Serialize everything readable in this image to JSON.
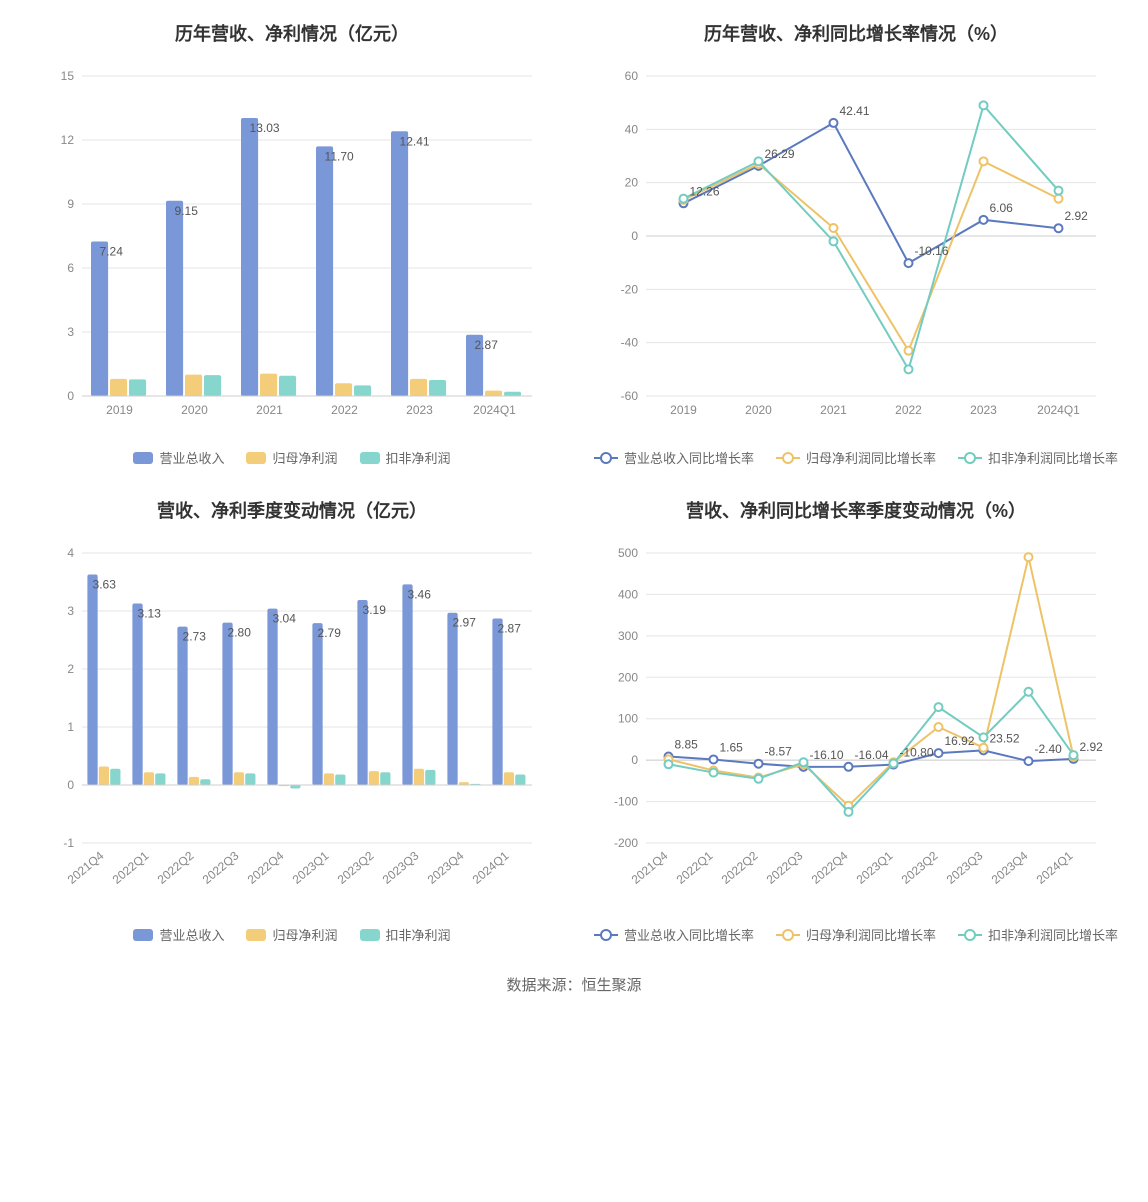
{
  "source_label": "数据来源：恒生聚源",
  "colors": {
    "blue": "#7a97d8",
    "yellow": "#f4cd7a",
    "teal": "#87d6cd",
    "line_blue": "#5b79bf",
    "line_yellow": "#eec368",
    "line_teal": "#73ccc1",
    "grid": "#e5e5e5",
    "axis_text": "#888",
    "value_label": "#555",
    "title": "#333333",
    "bg": "#ffffff"
  },
  "charts": {
    "topLeft": {
      "type": "bar",
      "title": "历年营收、净利情况（亿元）",
      "categories": [
        "2019",
        "2020",
        "2021",
        "2022",
        "2023",
        "2024Q1"
      ],
      "y": {
        "min": 0,
        "max": 15,
        "step": 3
      },
      "series": [
        {
          "name": "营业总收入",
          "colorKey": "blue",
          "values": [
            7.24,
            9.15,
            13.03,
            11.7,
            12.41,
            2.87
          ],
          "showLabels": true
        },
        {
          "name": "归母净利润",
          "colorKey": "yellow",
          "values": [
            0.8,
            1.0,
            1.05,
            0.6,
            0.8,
            0.25
          ],
          "showLabels": false
        },
        {
          "name": "扣非净利润",
          "colorKey": "teal",
          "values": [
            0.78,
            0.98,
            0.95,
            0.5,
            0.75,
            0.2
          ],
          "showLabels": false
        }
      ],
      "legend": [
        "营业总收入",
        "归母净利润",
        "扣非净利润"
      ]
    },
    "topRight": {
      "type": "line",
      "title": "历年营收、净利同比增长率情况（%）",
      "categories": [
        "2019",
        "2020",
        "2021",
        "2022",
        "2023",
        "2024Q1"
      ],
      "y": {
        "min": -60,
        "max": 60,
        "step": 20
      },
      "series": [
        {
          "name": "营业总收入同比增长率",
          "colorKey": "line_blue",
          "values": [
            12.26,
            26.29,
            42.41,
            -10.16,
            6.06,
            2.92
          ],
          "labels": [
            "12.26",
            "26.29",
            "42.41",
            "-10.16",
            "6.06",
            "2.92"
          ]
        },
        {
          "name": "归母净利润同比增长率",
          "colorKey": "line_yellow",
          "values": [
            13.5,
            27.0,
            3.0,
            -43.0,
            28.0,
            14.0
          ],
          "labels": []
        },
        {
          "name": "扣非净利润同比增长率",
          "colorKey": "line_teal",
          "values": [
            14.0,
            28.0,
            -2.0,
            -50.0,
            49.0,
            17.0
          ],
          "labels": []
        }
      ],
      "legend": [
        "营业总收入同比增长率",
        "归母净利润同比增长率",
        "扣非净利润同比增长率"
      ]
    },
    "bottomLeft": {
      "type": "bar",
      "title": "营收、净利季度变动情况（亿元）",
      "categories": [
        "2021Q4",
        "2022Q1",
        "2022Q2",
        "2022Q3",
        "2022Q4",
        "2023Q1",
        "2023Q2",
        "2023Q3",
        "2023Q4",
        "2024Q1"
      ],
      "rotateX": true,
      "y": {
        "min": -1,
        "max": 4,
        "step": 1
      },
      "series": [
        {
          "name": "营业总收入",
          "colorKey": "blue",
          "values": [
            3.63,
            3.13,
            2.73,
            2.8,
            3.04,
            2.79,
            3.19,
            3.46,
            2.97,
            2.87
          ],
          "showLabels": true
        },
        {
          "name": "归母净利润",
          "colorKey": "yellow",
          "values": [
            0.32,
            0.22,
            0.14,
            0.22,
            -0.02,
            0.2,
            0.24,
            0.28,
            0.05,
            0.22
          ],
          "showLabels": false
        },
        {
          "name": "扣非净利润",
          "colorKey": "teal",
          "values": [
            0.28,
            0.2,
            0.1,
            0.2,
            -0.06,
            0.18,
            0.22,
            0.26,
            0.02,
            0.18
          ],
          "showLabels": false
        }
      ],
      "legend": [
        "营业总收入",
        "归母净利润",
        "扣非净利润"
      ]
    },
    "bottomRight": {
      "type": "line",
      "title": "营收、净利同比增长率季度变动情况（%）",
      "categories": [
        "2021Q4",
        "2022Q1",
        "2022Q2",
        "2022Q3",
        "2022Q4",
        "2023Q1",
        "2023Q2",
        "2023Q3",
        "2023Q4",
        "2024Q1"
      ],
      "rotateX": true,
      "y": {
        "min": -200,
        "max": 500,
        "step": 100
      },
      "series": [
        {
          "name": "营业总收入同比增长率",
          "colorKey": "line_blue",
          "values": [
            8.85,
            1.65,
            -8.57,
            -16.1,
            -16.04,
            -10.8,
            16.92,
            23.52,
            -2.4,
            2.92
          ],
          "labels": [
            "8.85",
            "1.65",
            "-8.57",
            "-16.10",
            "-16.04",
            "-10.80",
            "16.92",
            "23.52",
            "-2.40",
            "2.92"
          ]
        },
        {
          "name": "归母净利润同比增长率",
          "colorKey": "line_yellow",
          "values": [
            2,
            -25,
            -42,
            -10,
            -110,
            -5,
            80,
            30,
            490,
            8
          ],
          "labels": []
        },
        {
          "name": "扣非净利润同比增长率",
          "colorKey": "line_teal",
          "values": [
            -10,
            -30,
            -45,
            -5,
            -125,
            -8,
            128,
            55,
            165,
            12
          ],
          "labels": []
        }
      ],
      "legend": [
        "营业总收入同比增长率",
        "归母净利润同比增长率",
        "扣非净利润同比增长率"
      ]
    }
  }
}
